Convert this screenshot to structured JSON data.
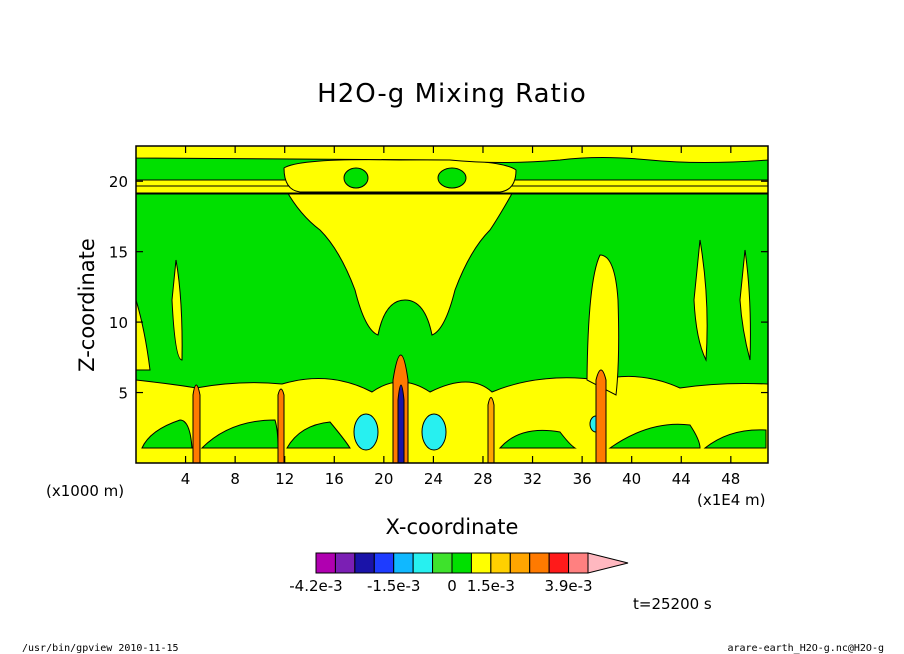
{
  "chart_data": {
    "type": "heatmap",
    "title": "H2O-g Mixing Ratio",
    "xlabel": "X-coordinate",
    "ylabel": "Z-coordinate",
    "x_unit_left": "(x1000 m)",
    "x_unit_right": "(x1E4 m)",
    "xlim": [
      0,
      51
    ],
    "ylim": [
      0,
      22.5
    ],
    "x_ticks": [
      4,
      8,
      12,
      16,
      20,
      24,
      28,
      32,
      36,
      40,
      44,
      48
    ],
    "y_ticks": [
      5,
      10,
      15,
      20
    ],
    "colorbar": {
      "colors": [
        "#b000b0",
        "#7b1fb4",
        "#1a13a8",
        "#1e3cff",
        "#10b8ff",
        "#27f0f0",
        "#3ee22c",
        "#00e000",
        "#ffff00",
        "#ffd000",
        "#ffa500",
        "#ff7a00",
        "#ff1a1a",
        "#ff8080",
        "#ffb8c0"
      ],
      "labels": [
        "-4.2e-3",
        "-1.5e-3",
        "0",
        "1.5e-3",
        "3.9e-3"
      ]
    },
    "time_label": "t=25200 s"
  },
  "footer": {
    "left": "/usr/bin/gpview  2010-11-15",
    "right": "arare-earth_H2O-g.nc@H2O-g"
  }
}
